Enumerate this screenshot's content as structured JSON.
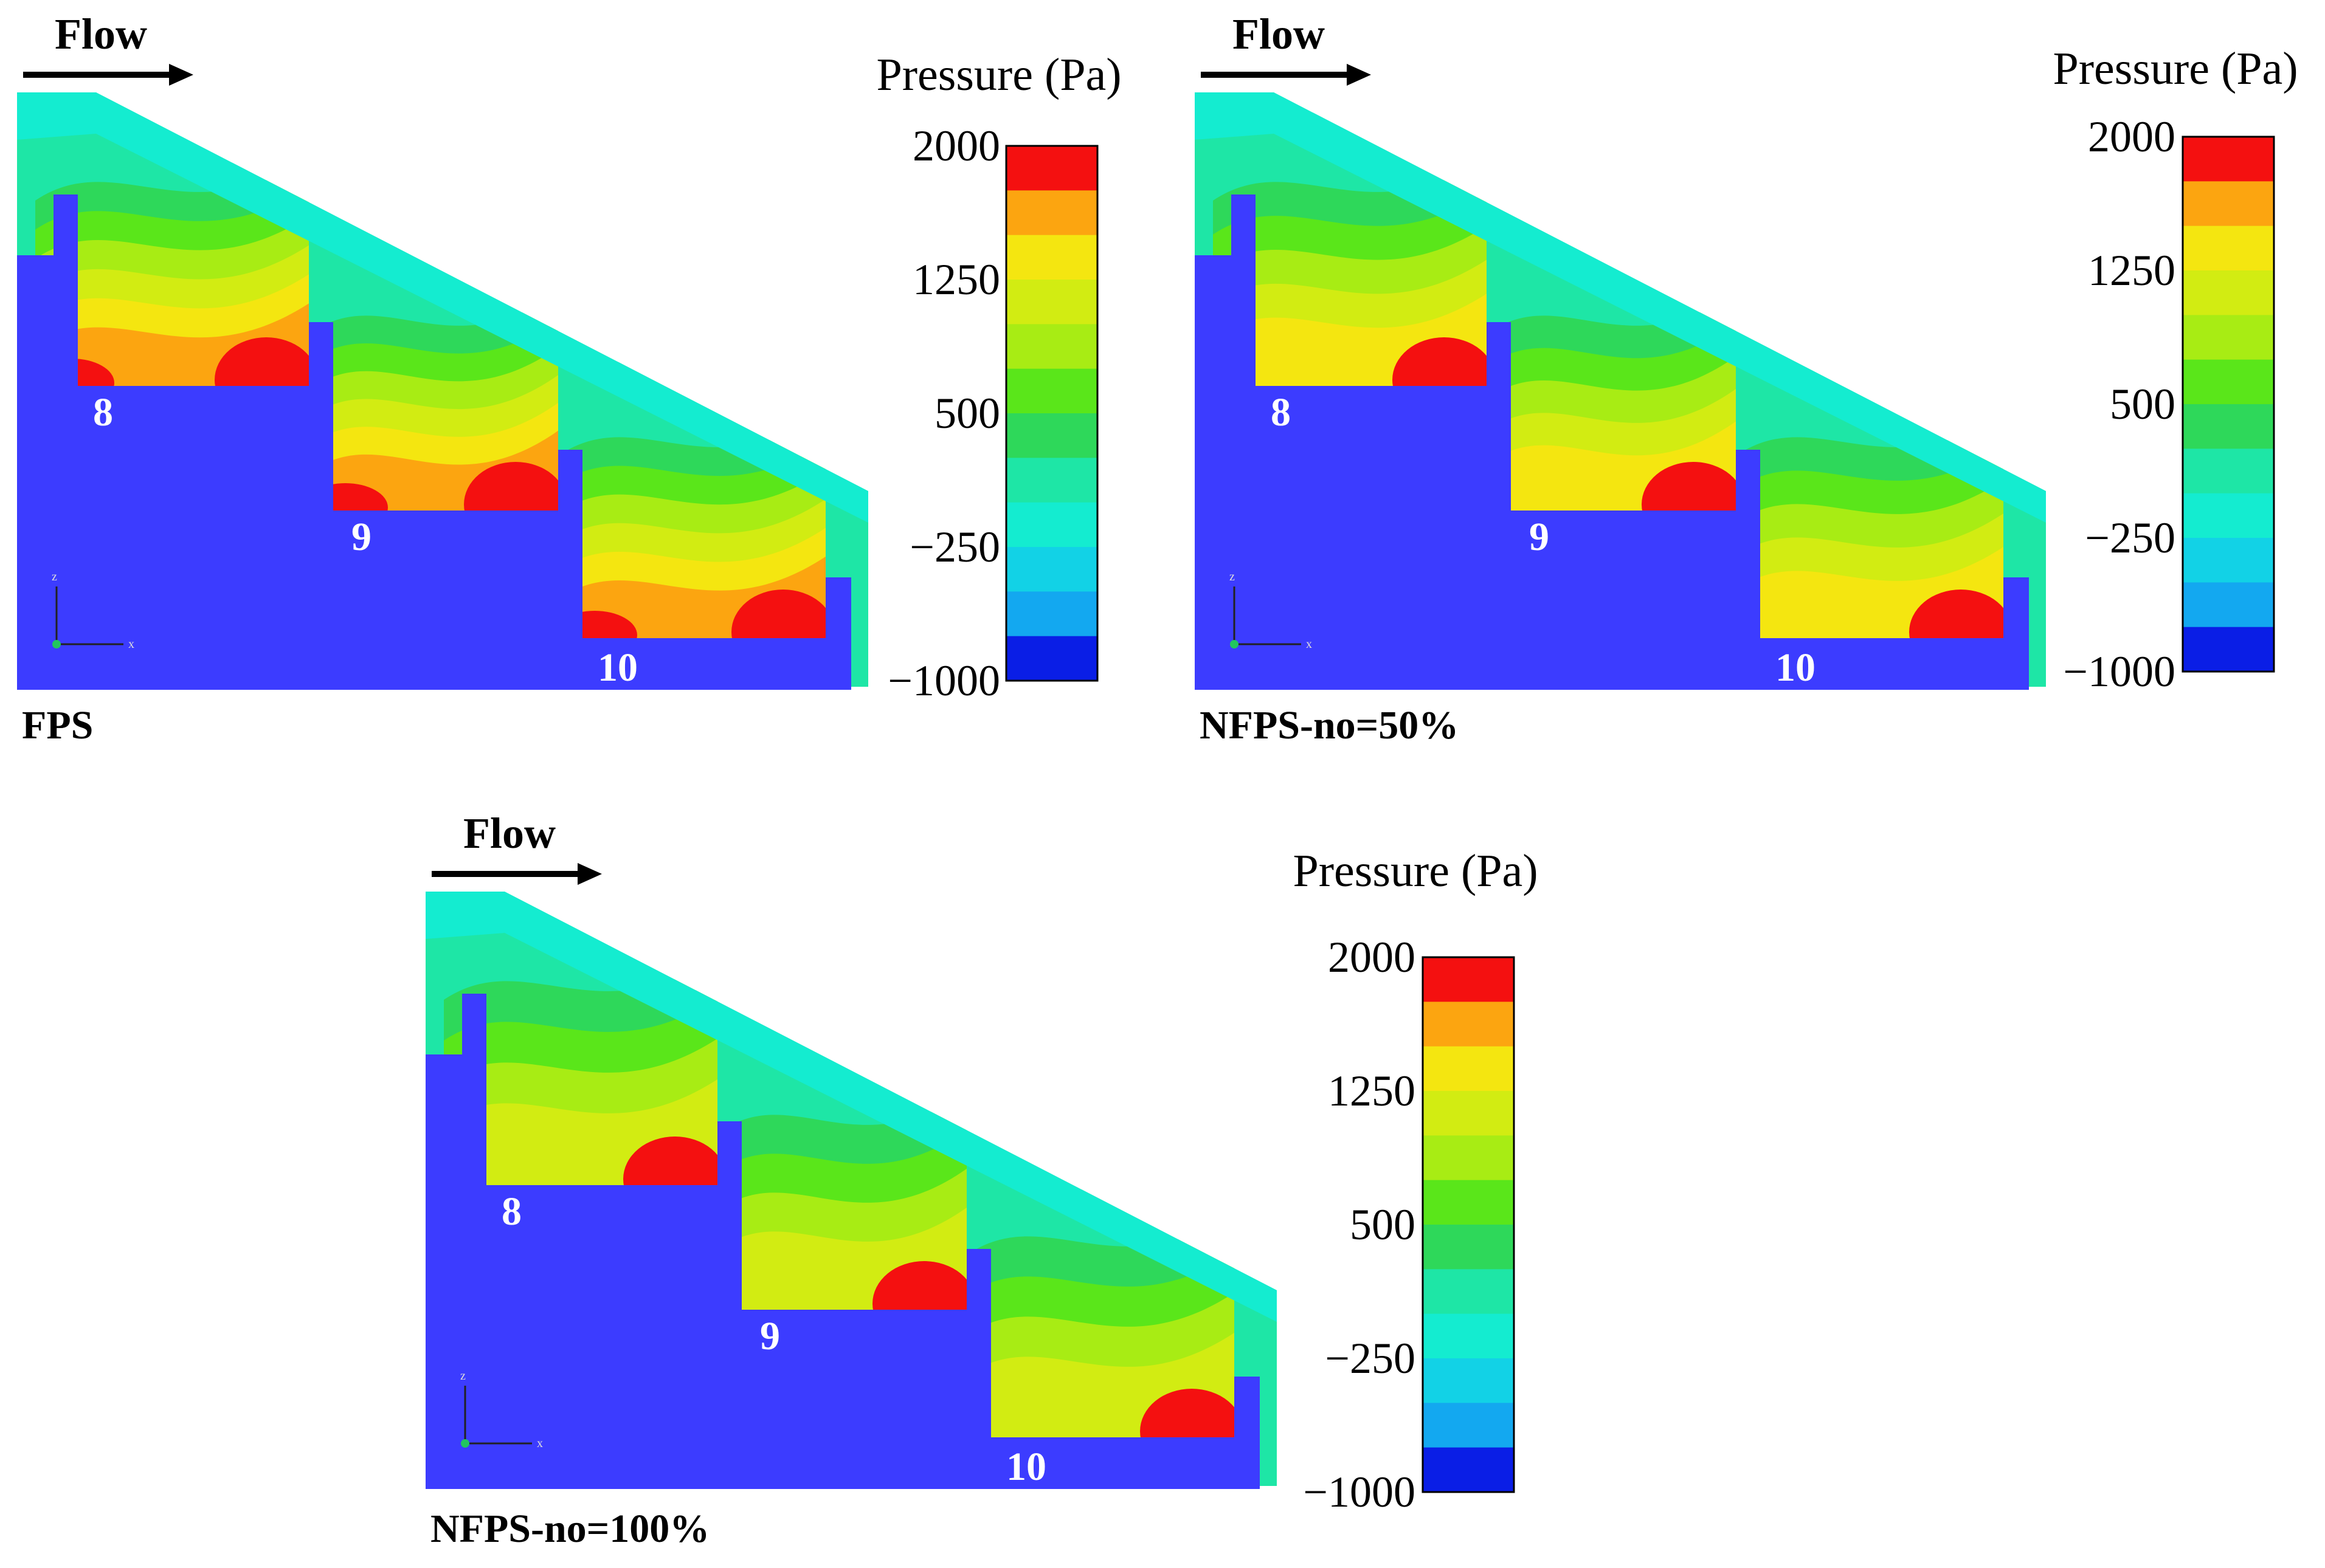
{
  "colors": {
    "solid": "#3c3cff",
    "background": "#ffffff",
    "text": "#000000",
    "step_label": "#ffffff",
    "palette": [
      "#0a1ee6",
      "#13a8f0",
      "#12d2e6",
      "#14ecd0",
      "#1ee6a6",
      "#2ed85a",
      "#5ae61a",
      "#a8ec14",
      "#d2ec12",
      "#f4e610",
      "#fca510",
      "#f41010"
    ]
  },
  "legend": {
    "title": "Pressure (Pa)",
    "ticks": [
      "2000",
      "1250",
      "500",
      "−250",
      "−1000"
    ]
  },
  "panels": [
    {
      "id": "fps",
      "flow_label": "Flow",
      "caption": "FPS",
      "steps": [
        "8",
        "9",
        "10"
      ],
      "axis_labels": {
        "z": "z",
        "x": "x"
      }
    },
    {
      "id": "nfps50",
      "flow_label": "Flow",
      "caption": "NFPS-no=50%",
      "steps": [
        "8",
        "9",
        "10"
      ],
      "axis_labels": {
        "z": "z",
        "x": "x"
      }
    },
    {
      "id": "nfps100",
      "flow_label": "Flow",
      "caption": "NFPS-no=100%",
      "steps": [
        "8",
        "9",
        "10"
      ],
      "axis_labels": {
        "z": "z",
        "x": "x"
      }
    }
  ]
}
